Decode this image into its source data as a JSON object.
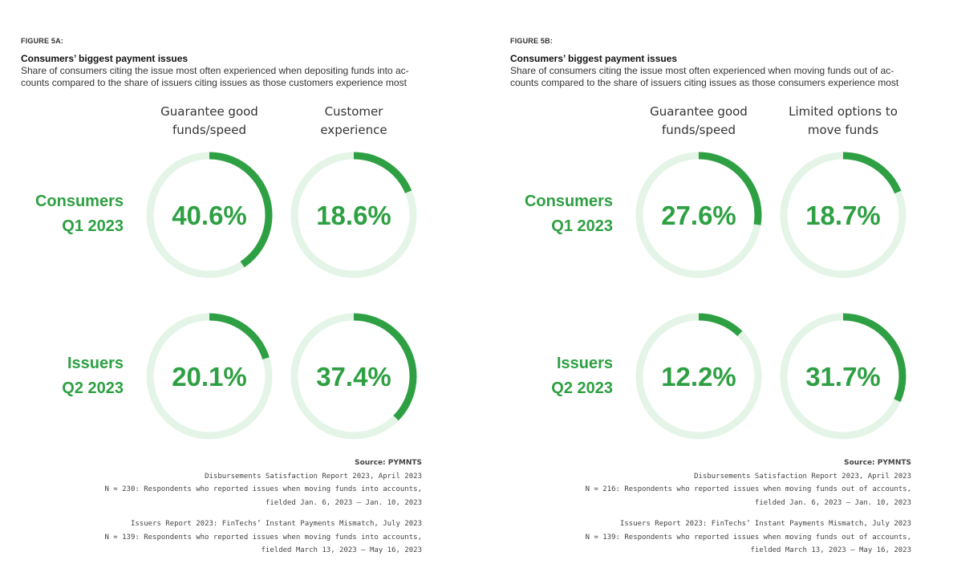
{
  "colors": {
    "accent": "#2ea043",
    "track": "#e4f4e7"
  },
  "chart_data": [
    {
      "type": "donut",
      "figure_label": "FIGURE 5A:",
      "title": "Consumers’ biggest payment issues",
      "subtitle_lines": [
        "Share of consumers citing the issue most often experienced when depositing funds into ac-",
        "counts compared to the share of issuers citing issues as those customers experience most"
      ],
      "columns": [
        {
          "lines": [
            "Guarantee good",
            "funds/speed"
          ]
        },
        {
          "lines": [
            "Customer",
            "experience"
          ]
        }
      ],
      "rows": [
        {
          "lines": [
            "Consumers",
            "Q1 2023"
          ]
        },
        {
          "lines": [
            "Issuers",
            "Q2 2023"
          ]
        }
      ],
      "values": [
        [
          40.6,
          18.6
        ],
        [
          20.1,
          37.4
        ]
      ],
      "labels": [
        [
          "40.6%",
          "18.6%"
        ],
        [
          "20.1%",
          "37.4%"
        ]
      ],
      "source": {
        "heading": "Source: PYMNTS",
        "lines": [
          "Disbursements Satisfaction Report 2023, April 2023",
          "N = 230: Respondents who reported issues when moving funds into accounts,",
          "fielded Jan. 6, 2023 – Jan. 10, 2023",
          "",
          "Issuers Report 2023: FinTechs’ Instant Payments Mismatch, July 2023",
          "N = 139: Respondents who reported issues when moving funds into accounts,",
          "fielded March 13, 2023 – May 16, 2023"
        ]
      }
    },
    {
      "type": "donut",
      "figure_label": "FIGURE 5B:",
      "title": "Consumers’ biggest payment issues",
      "subtitle_lines": [
        "Share of consumers citing the issue most often experienced when moving funds out of ac-",
        "counts compared to the share of issuers citing issues as those consumers experience most"
      ],
      "columns": [
        {
          "lines": [
            "Guarantee good",
            "funds/speed"
          ]
        },
        {
          "lines": [
            "Limited options to",
            "move funds"
          ]
        }
      ],
      "rows": [
        {
          "lines": [
            "Consumers",
            "Q1 2023"
          ]
        },
        {
          "lines": [
            "Issuers",
            "Q2 2023"
          ]
        }
      ],
      "values": [
        [
          27.6,
          18.7
        ],
        [
          12.2,
          31.7
        ]
      ],
      "labels": [
        [
          "27.6%",
          "18.7%"
        ],
        [
          "12.2%",
          "31.7%"
        ]
      ],
      "source": {
        "heading": "Source: PYMNTS",
        "lines": [
          "Disbursements Satisfaction Report 2023, April 2023",
          "N = 216: Respondents who reported issues when moving funds out of accounts,",
          "fielded Jan. 6, 2023 – Jan. 10, 2023",
          "",
          "Issuers Report 2023: FinTechs’ Instant Payments Mismatch, July 2023",
          "N = 139: Respondents who reported issues when moving funds out of accounts,",
          "fielded March 13, 2023 – May 16, 2023"
        ]
      }
    }
  ]
}
